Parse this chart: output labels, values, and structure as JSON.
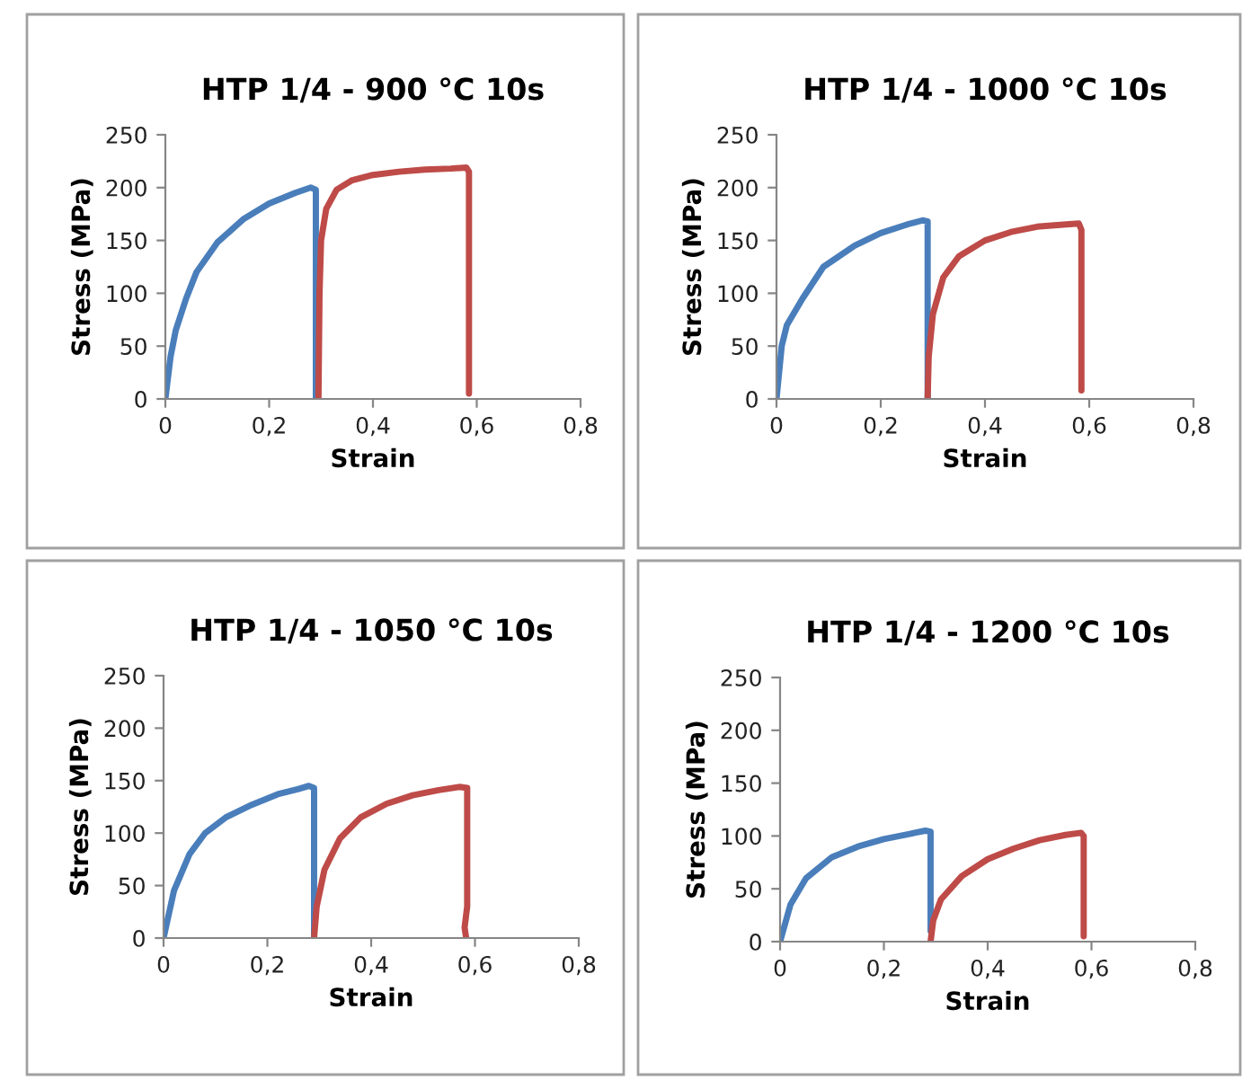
{
  "chart_data": [
    {
      "type": "line",
      "title": "HTP 1/4 - 900 °C 10s",
      "xlabel": "Strain",
      "ylabel": "Stress (MPa)",
      "xlim": [
        0,
        0.8
      ],
      "xticks": [
        0,
        {
          "value": 0.2,
          "label": "0,2"
        },
        {
          "value": 0.4,
          "label": "0,4"
        },
        {
          "value": 0.6,
          "label": "0,6"
        },
        {
          "value": 0.8,
          "label": "0,8"
        }
      ],
      "ylim": [
        0,
        250
      ],
      "yticks": [
        0,
        50,
        100,
        150,
        200,
        250
      ],
      "grid": false,
      "marker": "none",
      "line_style": "solid",
      "series": [
        {
          "color": "#4a7ebb",
          "x": [
            0,
            0.01,
            0.02,
            0.04,
            0.06,
            0.1,
            0.15,
            0.2,
            0.25,
            0.28,
            0.29,
            0.29,
            0.29
          ],
          "values": [
            0,
            40,
            65,
            95,
            120,
            148,
            170,
            185,
            195,
            200,
            198,
            100,
            0
          ]
        },
        {
          "color": "#be4b48",
          "x": [
            0.295,
            0.297,
            0.3,
            0.31,
            0.33,
            0.36,
            0.4,
            0.45,
            0.5,
            0.55,
            0.58,
            0.585,
            0.585,
            0.585
          ],
          "values": [
            0,
            100,
            150,
            180,
            198,
            207,
            212,
            215,
            217,
            218,
            219,
            215,
            100,
            5
          ]
        }
      ]
    },
    {
      "type": "line",
      "title": "HTP 1/4 - 1000 °C 10s",
      "xlabel": "Strain",
      "ylabel": "Stress (MPa)",
      "xlim": [
        0,
        0.8
      ],
      "xticks": [
        0,
        {
          "value": 0.2,
          "label": "0,2"
        },
        {
          "value": 0.4,
          "label": "0,4"
        },
        {
          "value": 0.6,
          "label": "0,6"
        },
        {
          "value": 0.8,
          "label": "0,8"
        }
      ],
      "ylim": [
        0,
        250
      ],
      "yticks": [
        0,
        50,
        100,
        150,
        200,
        250
      ],
      "grid": false,
      "marker": "none",
      "line_style": "solid",
      "series": [
        {
          "color": "#4a7ebb",
          "x": [
            0,
            0.01,
            0.02,
            0.05,
            0.09,
            0.15,
            0.2,
            0.25,
            0.28,
            0.29,
            0.29
          ],
          "values": [
            0,
            50,
            70,
            95,
            125,
            145,
            157,
            165,
            169,
            168,
            0
          ]
        },
        {
          "color": "#be4b48",
          "x": [
            0.29,
            0.292,
            0.3,
            0.32,
            0.35,
            0.4,
            0.45,
            0.5,
            0.55,
            0.58,
            0.585,
            0.585
          ],
          "values": [
            0,
            40,
            80,
            115,
            135,
            150,
            158,
            163,
            165,
            166,
            160,
            8
          ]
        }
      ]
    },
    {
      "type": "line",
      "title": "HTP 1/4 - 1050 °C 10s",
      "xlabel": "Strain",
      "ylabel": "Stress (MPa)",
      "xlim": [
        0,
        0.8
      ],
      "xticks": [
        0,
        {
          "value": 0.2,
          "label": "0,2"
        },
        {
          "value": 0.4,
          "label": "0,4"
        },
        {
          "value": 0.6,
          "label": "0,6"
        },
        {
          "value": 0.8,
          "label": "0,8"
        }
      ],
      "ylim": [
        0,
        250
      ],
      "yticks": [
        0,
        50,
        100,
        150,
        200,
        250
      ],
      "grid": false,
      "marker": "none",
      "line_style": "solid",
      "series": [
        {
          "color": "#4a7ebb",
          "x": [
            0,
            0.02,
            0.05,
            0.08,
            0.12,
            0.17,
            0.22,
            0.26,
            0.28,
            0.29,
            0.29
          ],
          "values": [
            0,
            45,
            80,
            100,
            115,
            127,
            137,
            142,
            145,
            143,
            0
          ]
        },
        {
          "color": "#be4b48",
          "x": [
            0.29,
            0.295,
            0.31,
            0.34,
            0.38,
            0.43,
            0.48,
            0.53,
            0.57,
            0.585,
            0.585,
            0.58,
            0.583
          ],
          "values": [
            0,
            30,
            65,
            95,
            115,
            128,
            136,
            141,
            144,
            143,
            30,
            10,
            0
          ]
        }
      ]
    },
    {
      "type": "line",
      "title": "HTP 1/4 - 1200 °C 10s",
      "xlabel": "Strain",
      "ylabel": "Stress (MPa)",
      "xlim": [
        0,
        0.8
      ],
      "xticks": [
        0,
        {
          "value": 0.2,
          "label": "0,2"
        },
        {
          "value": 0.4,
          "label": "0,4"
        },
        {
          "value": 0.6,
          "label": "0,6"
        },
        {
          "value": 0.8,
          "label": "0,8"
        }
      ],
      "ylim": [
        0,
        250
      ],
      "yticks": [
        0,
        50,
        100,
        150,
        200,
        250
      ],
      "grid": false,
      "marker": "none",
      "line_style": "solid",
      "series": [
        {
          "color": "#4a7ebb",
          "x": [
            0,
            0.02,
            0.05,
            0.1,
            0.15,
            0.2,
            0.25,
            0.28,
            0.29,
            0.29
          ],
          "values": [
            0,
            35,
            60,
            80,
            90,
            97,
            102,
            105,
            104,
            10
          ]
        },
        {
          "color": "#be4b48",
          "x": [
            0.29,
            0.295,
            0.31,
            0.35,
            0.4,
            0.45,
            0.5,
            0.55,
            0.58,
            0.585,
            0.585
          ],
          "values": [
            0,
            20,
            40,
            62,
            78,
            88,
            96,
            101,
            103,
            100,
            5
          ]
        }
      ]
    }
  ]
}
